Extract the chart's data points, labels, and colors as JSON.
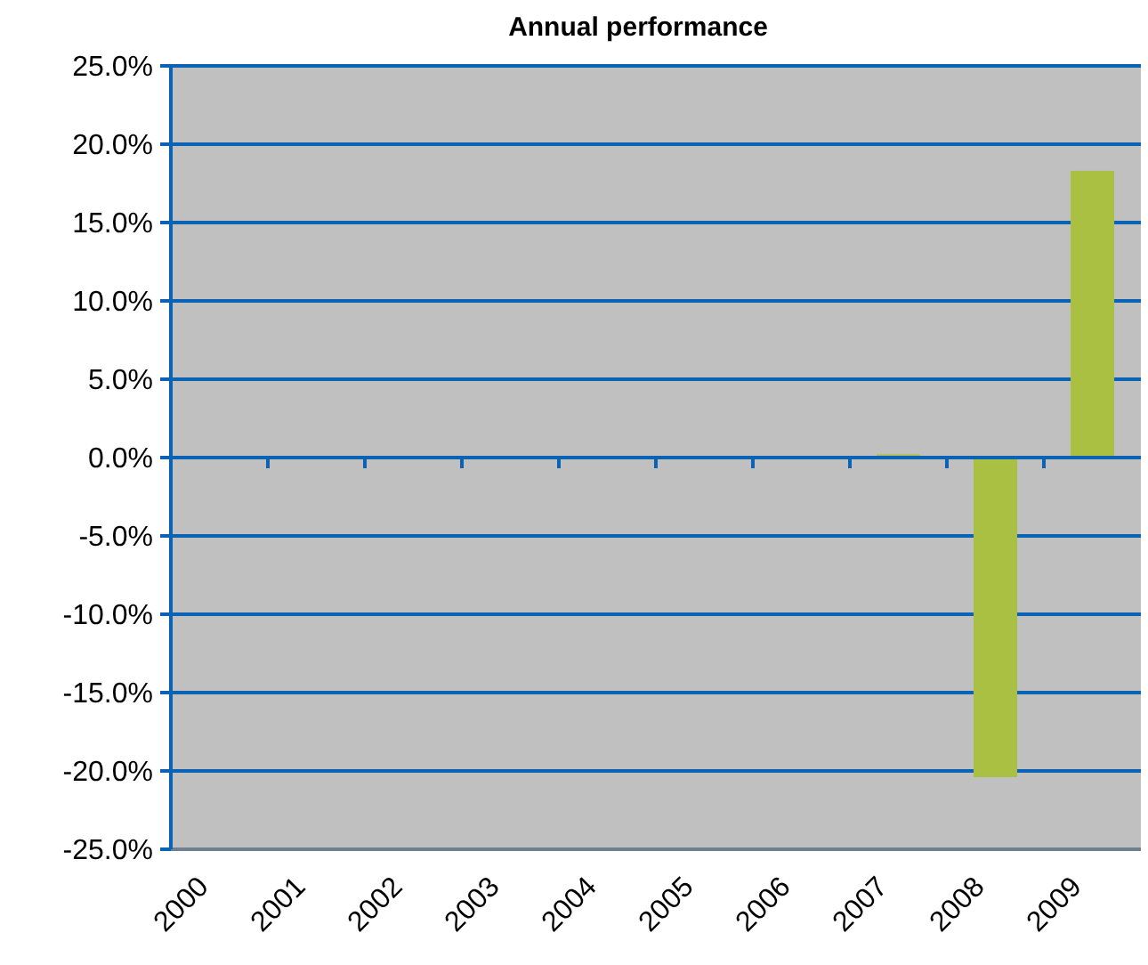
{
  "chart_data": {
    "type": "bar",
    "title": "Annual performance",
    "categories": [
      "2000",
      "2001",
      "2002",
      "2003",
      "2004",
      "2005",
      "2006",
      "2007",
      "2008",
      "2009"
    ],
    "values": [
      null,
      null,
      null,
      null,
      null,
      null,
      null,
      0.2,
      -20.4,
      18.3
    ],
    "color": "#a9c043",
    "ylim": [
      -25,
      25
    ],
    "yticks": [
      {
        "value": -25,
        "label": "-25.0%"
      },
      {
        "value": -20,
        "label": "-20.0%"
      },
      {
        "value": -15,
        "label": "-15.0%"
      },
      {
        "value": -10,
        "label": "-10.0%"
      },
      {
        "value": -5,
        "label": "-5.0%"
      },
      {
        "value": 0,
        "label": "0.0%"
      },
      {
        "value": 5,
        "label": "5.0%"
      },
      {
        "value": 10,
        "label": "10.0%"
      },
      {
        "value": 15,
        "label": "15.0%"
      },
      {
        "value": 20,
        "label": "20.0%"
      },
      {
        "value": 25,
        "label": "25.0%"
      }
    ],
    "grid": "y"
  }
}
